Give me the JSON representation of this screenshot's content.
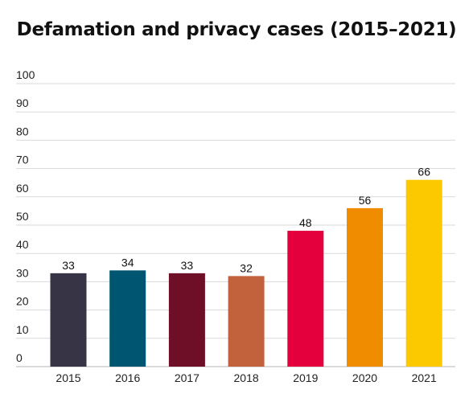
{
  "chart_data": {
    "type": "bar",
    "title": "Defamation and privacy cases (2015–2021)",
    "categories": [
      "2015",
      "2016",
      "2017",
      "2018",
      "2019",
      "2020",
      "2021"
    ],
    "values": [
      33,
      34,
      33,
      32,
      48,
      56,
      66
    ],
    "data_labels": [
      "33",
      "34",
      "33",
      "32",
      "48",
      "56",
      "66"
    ],
    "bar_colors": [
      "#363445",
      "#005670",
      "#6e0e27",
      "#c2623c",
      "#e3003d",
      "#f08c00",
      "#fcc800"
    ],
    "ylim": [
      0,
      100
    ],
    "yticks": [
      0,
      10,
      20,
      30,
      40,
      50,
      60,
      70,
      80,
      90,
      100
    ],
    "ytick_labels": [
      "0",
      "10",
      "20",
      "30",
      "40",
      "50",
      "60",
      "70",
      "80",
      "90",
      "100"
    ],
    "grid": true,
    "grid_color": "#d9d9d9",
    "xlabel": "",
    "ylabel": ""
  }
}
